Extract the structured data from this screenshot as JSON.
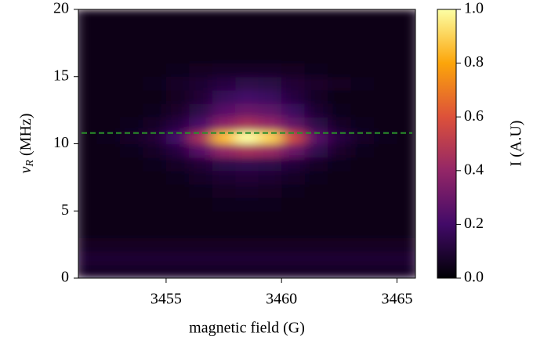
{
  "chart_data": {
    "type": "heatmap",
    "xlabel": "magnetic field (G)",
    "ylabel": {
      "symbol": "ν",
      "subscript": "R",
      "unit": "(MHz)"
    },
    "colorbar_label": "I (A.U)",
    "colormap": [
      "#000004",
      "#420a68",
      "#932667",
      "#dd513a",
      "#fca50a",
      "#fcffa4"
    ],
    "xlim": [
      3451.2,
      3465.8
    ],
    "ylim": [
      0,
      20
    ],
    "xticks": [
      3455,
      3460,
      3465
    ],
    "yticks": [
      0,
      5,
      10,
      15,
      20
    ],
    "clim": [
      0,
      1
    ],
    "cticks": [
      {
        "value": 0,
        "label": "0.0"
      },
      0.2,
      0.4,
      0.6,
      0.8,
      {
        "value": 1,
        "label": "1.0"
      }
    ],
    "hline": {
      "y": 10.8,
      "color": "#2a8f2a",
      "dashed": true
    },
    "x": [
      3451.5,
      3452.5,
      3453.5,
      3454.5,
      3455.5,
      3456.5,
      3457.5,
      3458.5,
      3459.5,
      3460.5,
      3461.5,
      3462.5,
      3463.5,
      3464.5,
      3465.5
    ],
    "y": [
      0.5,
      1.5,
      2.5,
      3.5,
      4.5,
      5.5,
      6.5,
      7.5,
      8.5,
      9.5,
      10.5,
      11.5,
      12.5,
      13.5,
      14.5,
      15.5,
      16.5,
      17.5,
      18.5,
      19.5
    ],
    "z": [
      [
        0.07,
        0.07,
        0.07,
        0.07,
        0.07,
        0.07,
        0.07,
        0.07,
        0.07,
        0.07,
        0.07,
        0.07,
        0.07,
        0.07,
        0.07
      ],
      [
        0.09,
        0.09,
        0.09,
        0.09,
        0.09,
        0.09,
        0.09,
        0.09,
        0.09,
        0.09,
        0.09,
        0.09,
        0.09,
        0.09,
        0.09
      ],
      [
        0.06,
        0.06,
        0.06,
        0.06,
        0.06,
        0.06,
        0.06,
        0.06,
        0.06,
        0.06,
        0.06,
        0.06,
        0.06,
        0.06,
        0.06
      ],
      [
        0.04,
        0.04,
        0.04,
        0.04,
        0.04,
        0.04,
        0.04,
        0.04,
        0.04,
        0.04,
        0.04,
        0.04,
        0.04,
        0.04,
        0.04
      ],
      [
        0.03,
        0.03,
        0.03,
        0.03,
        0.04,
        0.04,
        0.04,
        0.04,
        0.04,
        0.04,
        0.04,
        0.03,
        0.03,
        0.03,
        0.03
      ],
      [
        0.03,
        0.03,
        0.03,
        0.03,
        0.04,
        0.04,
        0.05,
        0.05,
        0.05,
        0.04,
        0.04,
        0.03,
        0.03,
        0.03,
        0.03
      ],
      [
        0.03,
        0.03,
        0.03,
        0.04,
        0.04,
        0.05,
        0.06,
        0.07,
        0.06,
        0.05,
        0.04,
        0.04,
        0.03,
        0.03,
        0.03
      ],
      [
        0.03,
        0.03,
        0.03,
        0.04,
        0.05,
        0.07,
        0.09,
        0.1,
        0.09,
        0.07,
        0.05,
        0.04,
        0.03,
        0.03,
        0.03
      ],
      [
        0.03,
        0.03,
        0.04,
        0.05,
        0.07,
        0.1,
        0.14,
        0.15,
        0.14,
        0.11,
        0.07,
        0.05,
        0.04,
        0.03,
        0.03
      ],
      [
        0.03,
        0.04,
        0.05,
        0.07,
        0.12,
        0.25,
        0.4,
        0.45,
        0.42,
        0.3,
        0.15,
        0.08,
        0.05,
        0.04,
        0.03
      ],
      [
        0.04,
        0.05,
        0.07,
        0.1,
        0.2,
        0.45,
        0.85,
        1.0,
        0.9,
        0.55,
        0.25,
        0.12,
        0.07,
        0.05,
        0.04
      ],
      [
        0.03,
        0.04,
        0.05,
        0.07,
        0.12,
        0.22,
        0.38,
        0.45,
        0.4,
        0.28,
        0.14,
        0.07,
        0.05,
        0.04,
        0.03
      ],
      [
        0.03,
        0.03,
        0.04,
        0.05,
        0.08,
        0.14,
        0.25,
        0.3,
        0.27,
        0.18,
        0.09,
        0.05,
        0.04,
        0.03,
        0.03
      ],
      [
        0.03,
        0.03,
        0.03,
        0.04,
        0.06,
        0.1,
        0.17,
        0.2,
        0.18,
        0.12,
        0.07,
        0.04,
        0.03,
        0.03,
        0.03
      ],
      [
        0.03,
        0.03,
        0.04,
        0.05,
        0.07,
        0.09,
        0.12,
        0.14,
        0.13,
        0.1,
        0.08,
        0.06,
        0.05,
        0.04,
        0.03
      ],
      [
        0.03,
        0.03,
        0.03,
        0.04,
        0.05,
        0.06,
        0.07,
        0.07,
        0.07,
        0.06,
        0.05,
        0.04,
        0.03,
        0.03,
        0.03
      ],
      [
        0.03,
        0.03,
        0.03,
        0.03,
        0.03,
        0.04,
        0.04,
        0.04,
        0.04,
        0.04,
        0.03,
        0.03,
        0.03,
        0.03,
        0.03
      ],
      [
        0.03,
        0.03,
        0.03,
        0.03,
        0.03,
        0.03,
        0.04,
        0.04,
        0.04,
        0.03,
        0.03,
        0.03,
        0.03,
        0.03,
        0.03
      ],
      [
        0.03,
        0.03,
        0.03,
        0.03,
        0.03,
        0.03,
        0.03,
        0.03,
        0.03,
        0.03,
        0.03,
        0.03,
        0.03,
        0.03,
        0.03
      ],
      [
        0.03,
        0.03,
        0.03,
        0.03,
        0.03,
        0.03,
        0.03,
        0.03,
        0.03,
        0.03,
        0.03,
        0.03,
        0.03,
        0.03,
        0.03
      ]
    ]
  }
}
